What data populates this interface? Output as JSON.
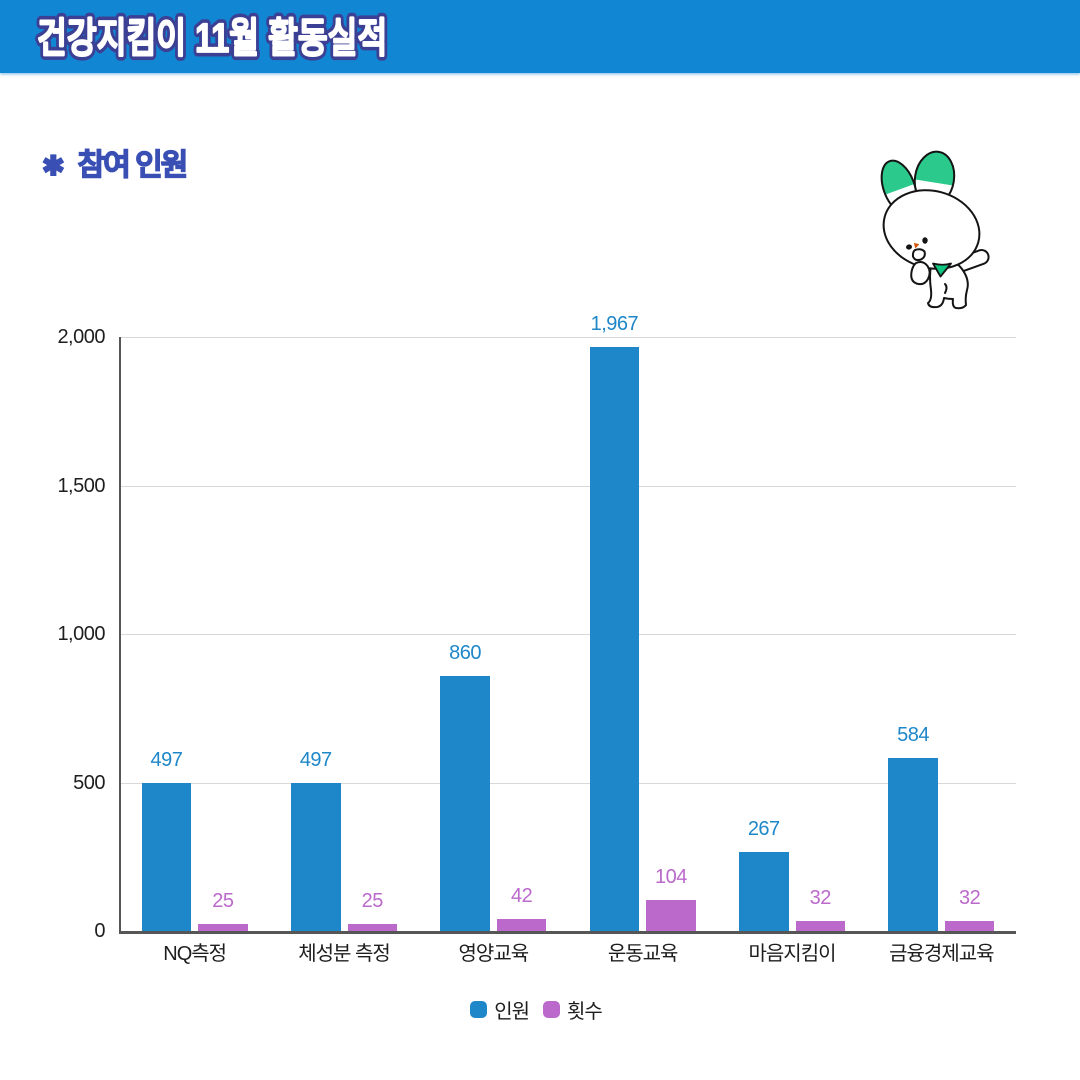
{
  "page": {
    "background": "#ffffff"
  },
  "header": {
    "title": "건강지킴이 11월 활동실적",
    "bg_color": "#1187d3",
    "text_color": "#ffffff",
    "outline_color": "#3c4095"
  },
  "section": {
    "icon": "✱",
    "label": "참여 인원",
    "color": "#3a4fb4"
  },
  "mascot": {
    "description": "white rabbit character with green-tipped ears and green scarf",
    "ear_tip_color": "#2bca8c",
    "scarf_color": "#10c57f",
    "nose_color": "#d2570e",
    "outline_color": "#141414"
  },
  "chart_data": {
    "type": "bar",
    "title": "",
    "xlabel": "",
    "ylabel": "",
    "categories": [
      "NQ측정",
      "체성분 측정",
      "영양교육",
      "운동교육",
      "마음지킴이",
      "금융경제교육"
    ],
    "series": [
      {
        "name": "인원",
        "color": "#1e87c9",
        "values": [
          497,
          497,
          860,
          1967,
          267,
          584
        ]
      },
      {
        "name": "횟수",
        "color": "#bb69cb",
        "values": [
          25,
          25,
          42,
          104,
          32,
          32
        ]
      }
    ],
    "value_labels": [
      "497",
      "497",
      "860",
      "1,967",
      "267",
      "584",
      "25",
      "25",
      "42",
      "104",
      "32",
      "32"
    ],
    "ylim": [
      0,
      2000
    ],
    "yticks": [
      0,
      500,
      1000,
      1500,
      2000
    ],
    "ytick_labels": [
      "0",
      "500",
      "1,000",
      "1,500",
      "2,000"
    ],
    "grid": true,
    "legend_position": "bottom",
    "text_color": "#1e1e1e",
    "axis_color": "#565656",
    "grid_color": "#d8d8d8"
  }
}
